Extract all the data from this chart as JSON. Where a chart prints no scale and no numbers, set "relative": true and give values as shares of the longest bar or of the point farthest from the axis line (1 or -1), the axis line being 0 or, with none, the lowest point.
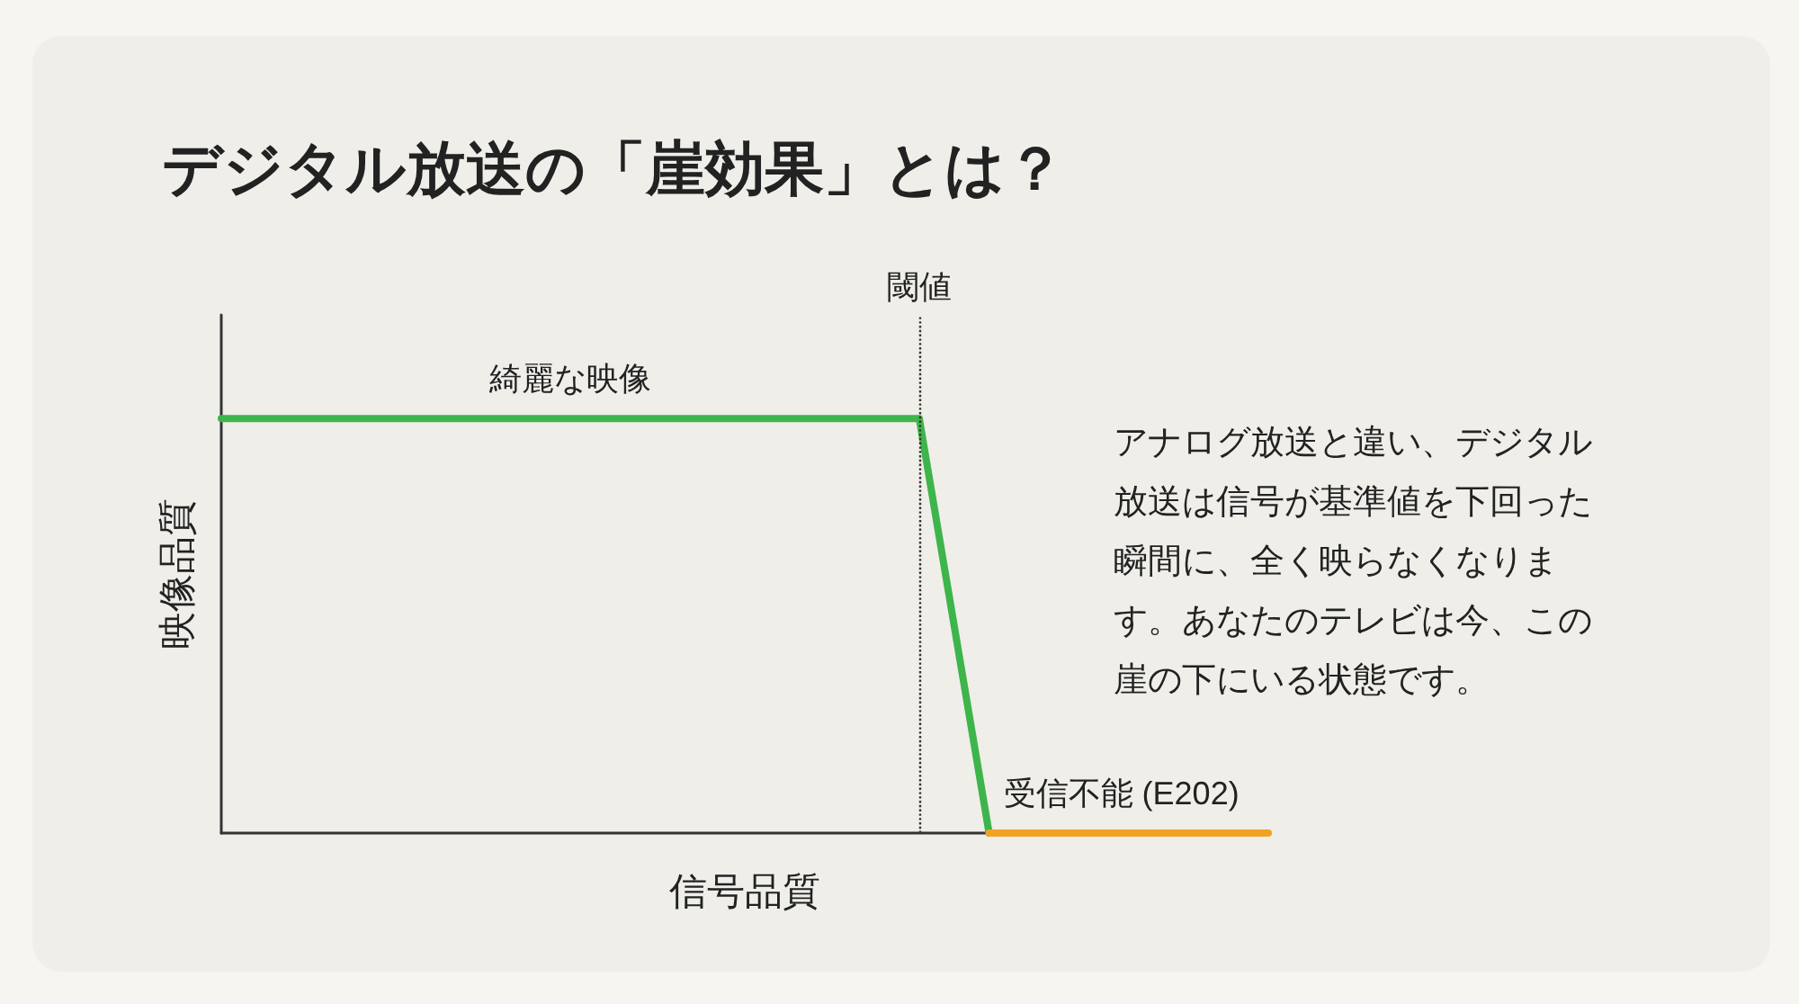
{
  "chart_data": {
    "type": "line",
    "title": "デジタル放送の「崖効果」とは？",
    "xlabel": "信号品質",
    "ylabel": "映像品質",
    "relative": true,
    "categories": [
      null,
      null,
      null,
      null,
      null,
      null,
      null,
      null,
      null,
      null,
      null,
      null,
      null,
      null,
      null,
      null
    ],
    "series": [
      {
        "color": "#3db54a",
        "values": [
          1,
          1,
          1,
          1,
          1,
          1,
          1,
          1,
          1,
          1,
          1,
          0,
          null,
          null,
          null,
          null
        ]
      },
      {
        "color": "#f0a323",
        "values": [
          null,
          null,
          null,
          null,
          null,
          null,
          null,
          null,
          null,
          null,
          null,
          0,
          0,
          0,
          0,
          0
        ]
      }
    ],
    "annotations": [
      {
        "text": "綺麗な映像",
        "y": 1
      },
      {
        "text": "受信不能 (E202)",
        "y": 0
      },
      "閾値",
      "アナログ放送と違い、デジタル放送は信号が基準値を下回った瞬間に、全く映らなくなります。あなたのテレビは今、この崖の下にいる状態です。"
    ],
    "marker": "none",
    "line_style": "solid",
    "grid": false
  }
}
